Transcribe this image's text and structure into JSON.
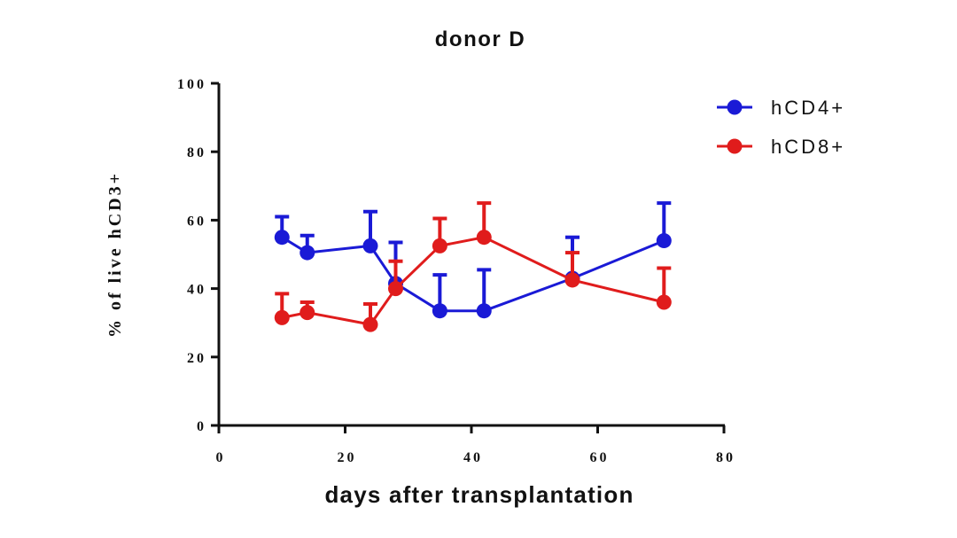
{
  "chart_data": {
    "type": "line",
    "title": "donor D",
    "xlabel": "days after transplantation",
    "ylabel": "% of live hCD3+",
    "xlim": [
      0,
      80
    ],
    "ylim": [
      0,
      100
    ],
    "xticks": [
      "0",
      "20",
      "40",
      "60",
      "80"
    ],
    "yticks": [
      "0",
      "20",
      "40",
      "60",
      "80",
      "100"
    ],
    "grid": false,
    "legend_position": "top-right",
    "series": [
      {
        "name": "hCD4+",
        "color": "#1a1ad6",
        "points": [
          {
            "x": 10,
            "y": 55,
            "err": 6
          },
          {
            "x": 14,
            "y": 50.5,
            "err": 5
          },
          {
            "x": 24,
            "y": 52.5,
            "err": 10
          },
          {
            "x": 28,
            "y": 41.5,
            "err": 12
          },
          {
            "x": 35,
            "y": 33.5,
            "err": 10.5
          },
          {
            "x": 42,
            "y": 33.5,
            "err": 12
          },
          {
            "x": 56,
            "y": 43,
            "err": 12
          },
          {
            "x": 70.5,
            "y": 54,
            "err": 11
          }
        ]
      },
      {
        "name": "hCD8+",
        "color": "#e01c1c",
        "points": [
          {
            "x": 10,
            "y": 31.5,
            "err": 7
          },
          {
            "x": 14,
            "y": 33,
            "err": 3
          },
          {
            "x": 24,
            "y": 29.5,
            "err": 6
          },
          {
            "x": 28,
            "y": 40,
            "err": 8
          },
          {
            "x": 35,
            "y": 52.5,
            "err": 8
          },
          {
            "x": 42,
            "y": 55,
            "err": 10
          },
          {
            "x": 56,
            "y": 42.5,
            "err": 8
          },
          {
            "x": 70.5,
            "y": 36,
            "err": 10
          }
        ]
      }
    ]
  }
}
